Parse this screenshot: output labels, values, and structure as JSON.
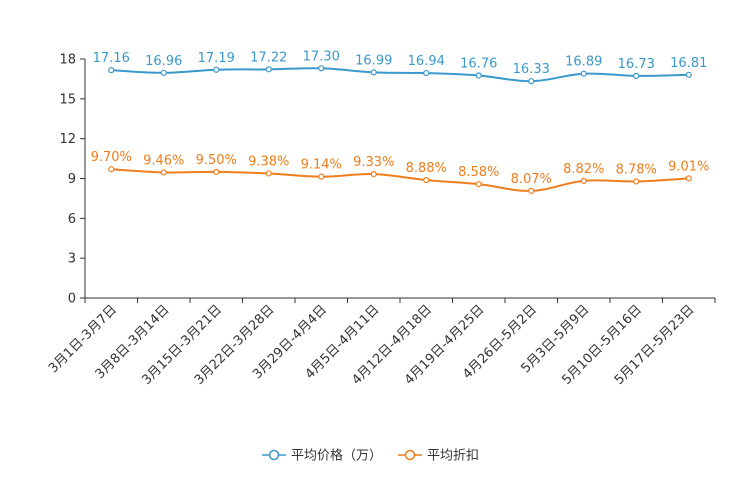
{
  "chart_data": {
    "type": "line",
    "title": "",
    "xlabel": "",
    "ylabel": "",
    "ylim": [
      0,
      18
    ],
    "yticks": [
      0,
      3,
      6,
      9,
      12,
      15,
      18
    ],
    "categories": [
      "3月1日-3月7日",
      "3月8日-3月14日",
      "3月15日-3月21日",
      "3月22日-3月28日",
      "3月29日-4月4日",
      "4月5日-4月11日",
      "4月12日-4月18日",
      "4月19日-4月25日",
      "4月26日-5月2日",
      "5月3日-5月9日",
      "5月10日-5月16日",
      "5月17日-5月23日"
    ],
    "series": [
      {
        "name": "平均价格（万）",
        "color": "#3a99cc",
        "values": [
          17.16,
          16.96,
          17.19,
          17.22,
          17.3,
          16.99,
          16.94,
          16.76,
          16.33,
          16.89,
          16.73,
          16.81
        ],
        "labels": [
          "17.16",
          "16.96",
          "17.19",
          "17.22",
          "17.30",
          "16.99",
          "16.94",
          "16.76",
          "16.33",
          "16.89",
          "16.73",
          "16.81"
        ]
      },
      {
        "name": "平均折扣",
        "color": "#ef7d1b",
        "values": [
          9.7,
          9.46,
          9.5,
          9.38,
          9.14,
          9.33,
          8.88,
          8.58,
          8.07,
          8.82,
          8.78,
          9.01
        ],
        "labels": [
          "9.70%",
          "9.46%",
          "9.50%",
          "9.38%",
          "9.14%",
          "9.33%",
          "8.88%",
          "8.58%",
          "8.07%",
          "8.82%",
          "8.78%",
          "9.01%"
        ]
      }
    ],
    "legend_position": "bottom-center",
    "grid": false
  }
}
